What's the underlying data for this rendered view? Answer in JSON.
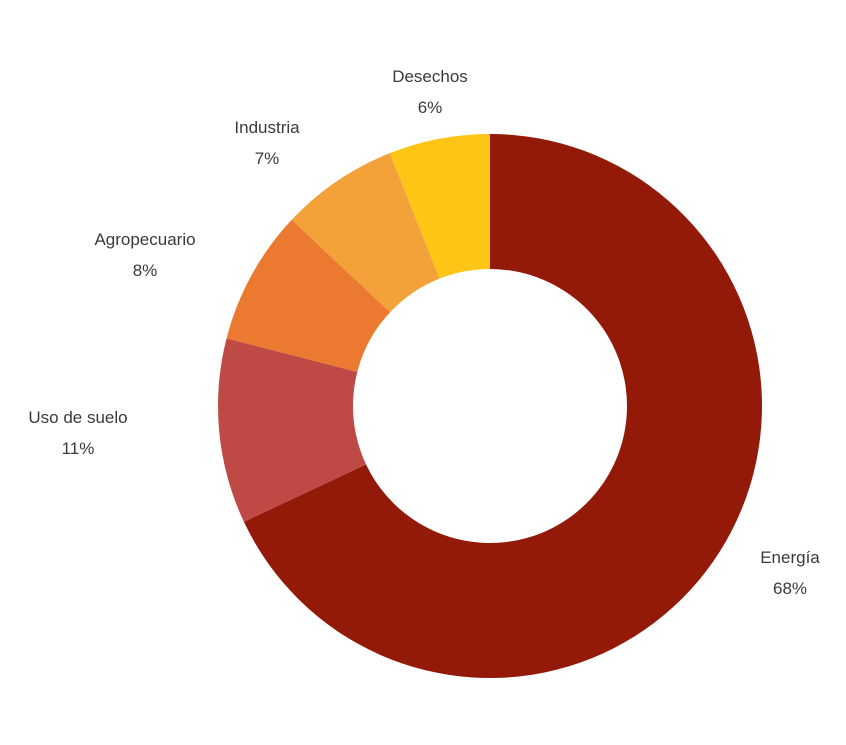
{
  "chart_data": {
    "type": "pie",
    "donut": true,
    "start": "12 o'clock, clockwise",
    "slices": [
      {
        "label": "Energía",
        "value": 68,
        "value_label": "68%",
        "color": "#931a09"
      },
      {
        "label": "Uso de suelo",
        "value": 11,
        "value_label": "11%",
        "color": "#bf4a45"
      },
      {
        "label": "Agropecuario",
        "value": 8,
        "value_label": "8%",
        "color": "#eb7a30"
      },
      {
        "label": "Industria",
        "value": 7,
        "value_label": "7%",
        "color": "#f3a23a"
      },
      {
        "label": "Desechos",
        "value": 6,
        "value_label": "6%",
        "color": "#fdc516"
      }
    ]
  }
}
